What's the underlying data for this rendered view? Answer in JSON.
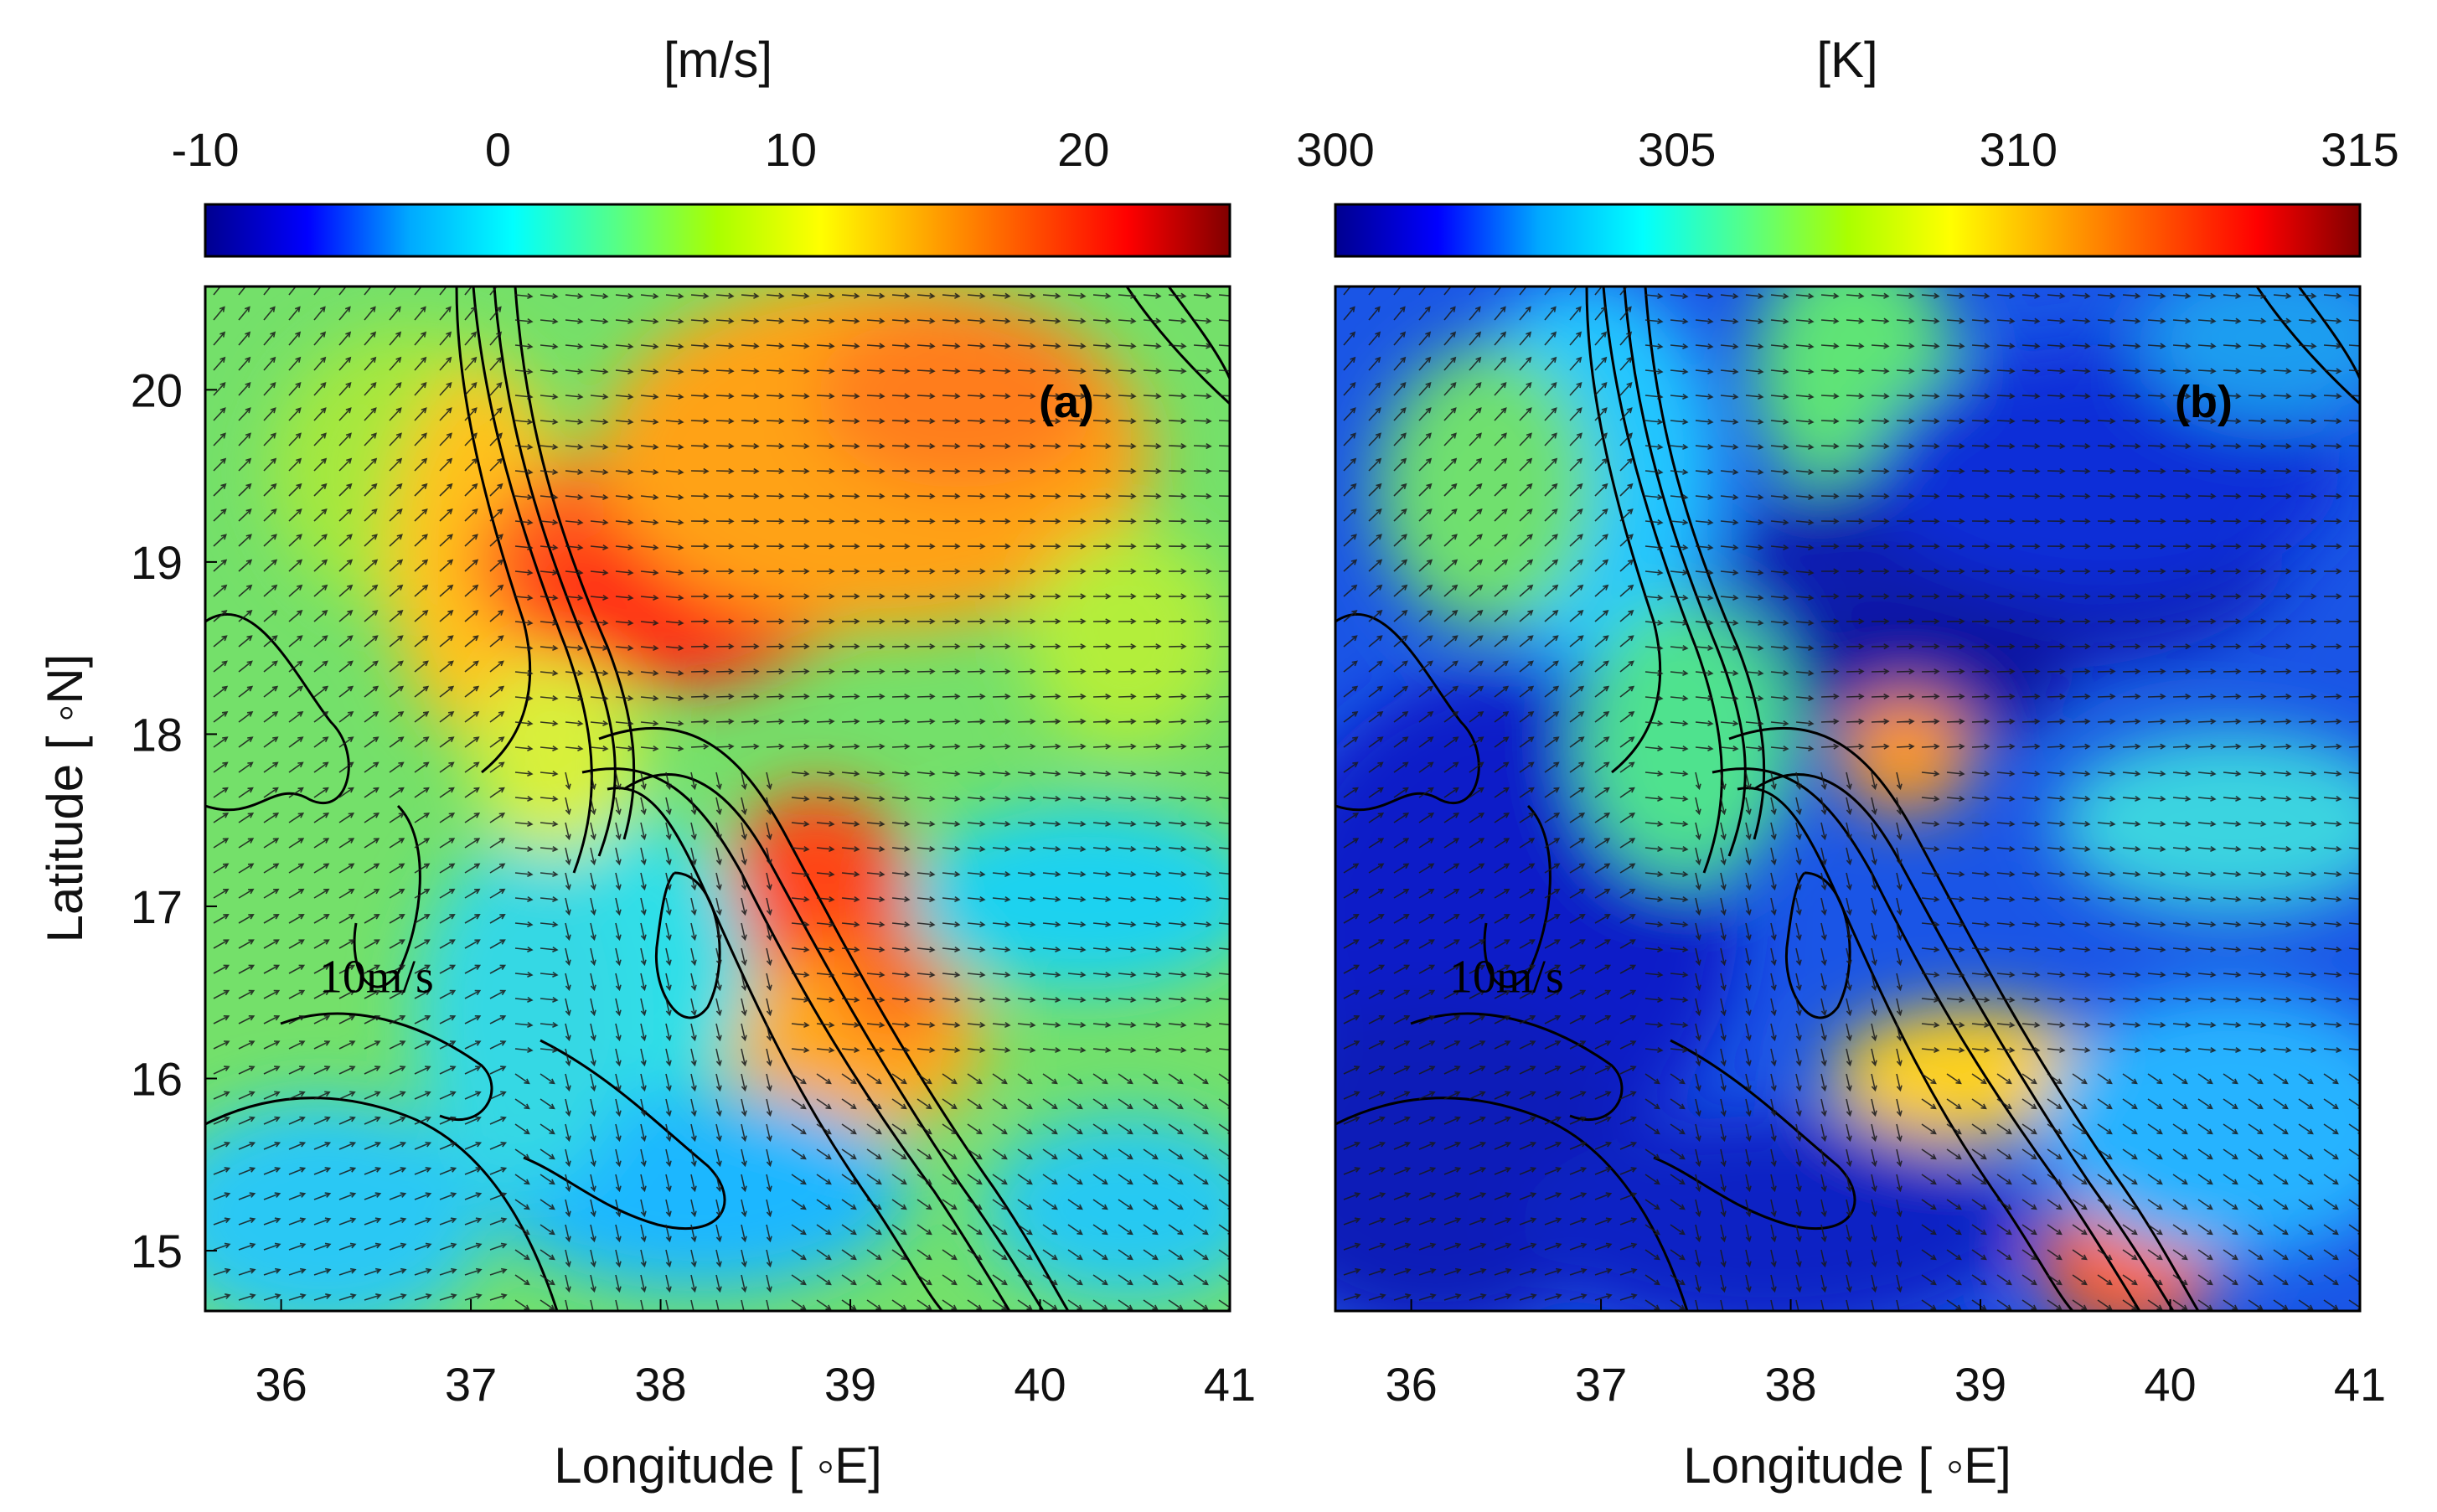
{
  "chart_data": [
    {
      "type": "heatmap",
      "panel_label": "(a)",
      "colorbar_label": "[m/s]",
      "colorbar_ticks": [
        -10,
        0,
        10,
        20
      ],
      "colorbar_range": [
        -10,
        25
      ],
      "colormap": [
        "#00008f",
        "#0000ff",
        "#00aaff",
        "#00ffff",
        "#55ff88",
        "#aaff00",
        "#ffff00",
        "#ffaa00",
        "#ff5500",
        "#ff0000",
        "#800000"
      ],
      "xlabel": "Longitude [ ◦E]",
      "ylabel": "Latitude [ ◦N]",
      "x_ticks": [
        36,
        37,
        38,
        39,
        40,
        41
      ],
      "y_ticks": [
        15,
        16,
        17,
        18,
        19,
        20
      ],
      "xlim": [
        35.6,
        41.0
      ],
      "ylim": [
        14.65,
        20.6
      ],
      "reference_vector_label": "10m/s",
      "reference_vector_position": [
        36.2,
        16.5
      ]
    },
    {
      "type": "heatmap",
      "panel_label": "(b)",
      "colorbar_label": "[K]",
      "colorbar_ticks": [
        300,
        305,
        310,
        315
      ],
      "colorbar_range": [
        300,
        315
      ],
      "colormap": [
        "#00008f",
        "#0000ff",
        "#00aaff",
        "#00ffff",
        "#55ff88",
        "#aaff00",
        "#ffff00",
        "#ffaa00",
        "#ff5500",
        "#ff0000",
        "#800000"
      ],
      "xlabel": "Longitude [ ◦E]",
      "ylabel": "",
      "x_ticks": [
        36,
        37,
        38,
        39,
        40,
        41
      ],
      "y_ticks": [
        15,
        16,
        17,
        18,
        19,
        20
      ],
      "xlim": [
        35.6,
        41.0
      ],
      "ylim": [
        14.65,
        20.6
      ],
      "reference_vector_label": "10m/s",
      "reference_vector_position": [
        36.2,
        16.5
      ]
    }
  ]
}
